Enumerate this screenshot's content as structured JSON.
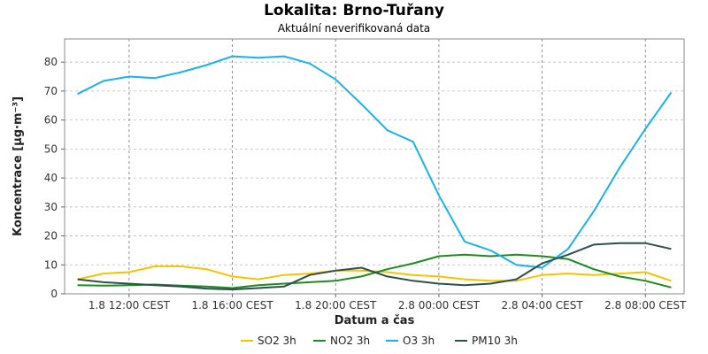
{
  "chart_data": {
    "type": "line",
    "title": "Lokalita: Brno-Tuřany",
    "subtitle": "Aktuální neverifikovaná data",
    "xlabel": "Datum a čas",
    "ylabel": "Koncentrace [µg·m⁻³]",
    "ylim": [
      0,
      88
    ],
    "y_ticks": [
      0,
      10,
      20,
      30,
      40,
      50,
      60,
      70,
      80
    ],
    "x_hours_range": [
      9.5,
      33.5
    ],
    "x_ticks": [
      {
        "hour": 12,
        "label": "1.8 12:00 CEST"
      },
      {
        "hour": 16,
        "label": "1.8 16:00 CEST"
      },
      {
        "hour": 20,
        "label": "1.8 20:00 CEST"
      },
      {
        "hour": 24,
        "label": "2.8 00:00 CEST"
      },
      {
        "hour": 28,
        "label": "2.8 04:00 CEST"
      },
      {
        "hour": 32,
        "label": "2.8 08:00 CEST"
      }
    ],
    "grid": true,
    "legend_position": "bottom",
    "x_hours": [
      10,
      11,
      12,
      13,
      14,
      15,
      16,
      17,
      18,
      19,
      20,
      21,
      22,
      23,
      24,
      25,
      26,
      27,
      28,
      29,
      30,
      31,
      32,
      33
    ],
    "series": [
      {
        "name": "SO2 3h",
        "color": "#f5c400",
        "values": [
          5,
          7,
          7.5,
          9.5,
          9.5,
          8.5,
          6,
          5,
          6.5,
          7,
          8,
          8,
          7.5,
          6.5,
          6,
          5,
          4.5,
          4.5,
          6.5,
          7,
          6.5,
          7,
          7.5,
          4.5
        ]
      },
      {
        "name": "NO2 3h",
        "color": "#1f8a1f",
        "values": [
          3,
          2.8,
          3,
          3.2,
          2.8,
          2.5,
          2,
          3,
          3.5,
          4,
          4.5,
          6,
          8.5,
          10.5,
          13,
          13.5,
          13,
          13.5,
          13,
          12,
          8.5,
          6,
          4.5,
          2.2
        ]
      },
      {
        "name": "O3 3h",
        "color": "#1ab2e8",
        "values": [
          69,
          73.5,
          75,
          74.5,
          76.5,
          79,
          82,
          81.5,
          82,
          79.5,
          74,
          65.5,
          56.5,
          52.5,
          34,
          18,
          15,
          10,
          9,
          15.5,
          28.5,
          43.5,
          57,
          69.5
        ]
      },
      {
        "name": "PM10 3h",
        "color": "#2f4f4f",
        "values": [
          5,
          4,
          3.5,
          3,
          2.5,
          1.8,
          1.5,
          2,
          2.5,
          6.5,
          8,
          9,
          6,
          4.5,
          3.5,
          3,
          3.5,
          5,
          10.5,
          13.5,
          17,
          17.5,
          17.5,
          15.5
        ]
      }
    ]
  }
}
